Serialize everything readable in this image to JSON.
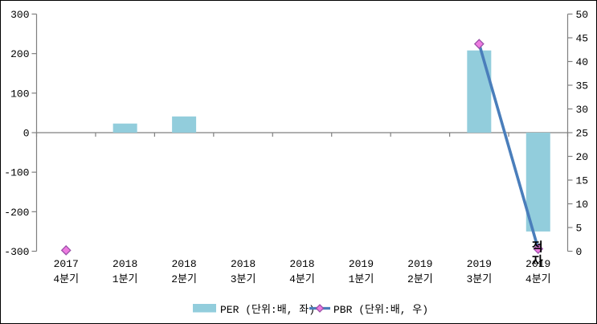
{
  "chart_data": {
    "type": "bar",
    "combo": "bar+line",
    "title": "",
    "categories": [
      [
        "2017",
        "4분기"
      ],
      [
        "2018",
        "1분기"
      ],
      [
        "2018",
        "2분기"
      ],
      [
        "2018",
        "3분기"
      ],
      [
        "2018",
        "4분기"
      ],
      [
        "2019",
        "1분기"
      ],
      [
        "2019",
        "2분기"
      ],
      [
        "2019",
        "3분기"
      ],
      [
        "2019",
        "4분기"
      ]
    ],
    "series": [
      {
        "name": "PER (단위:배, 좌)",
        "type": "bar",
        "axis": "left",
        "color": "#92CDDC",
        "values": [
          null,
          23,
          41,
          null,
          null,
          null,
          null,
          208,
          -250
        ]
      },
      {
        "name": "PBR (단위:배, 우)",
        "type": "line",
        "axis": "right",
        "color": "#4A7EBB",
        "marker": "diamond",
        "marker_fill": "#EE7BE0",
        "marker_stroke": "#9A50A8",
        "values": [
          0.2,
          null,
          null,
          null,
          null,
          null,
          null,
          43.7,
          0.5
        ]
      }
    ],
    "left_axis": {
      "min": -300,
      "max": 300,
      "step": 100,
      "ticks": [
        "300",
        "200",
        "100",
        "0",
        "-100",
        "-200",
        "-300"
      ]
    },
    "right_axis": {
      "min": 0,
      "max": 50,
      "step": 5,
      "ticks": [
        "50",
        "45",
        "40",
        "35",
        "30",
        "25",
        "20",
        "15",
        "10",
        "5",
        "0"
      ]
    },
    "annotations": [
      {
        "text": "적자",
        "category_index": 8,
        "orientation": "vertical-stack"
      }
    ],
    "legend": {
      "position": "bottom-center",
      "entries": [
        {
          "label": "PER (단위:배, 좌)",
          "swatch": "rect"
        },
        {
          "label": "PBR (단위:배, 우)",
          "swatch": "line-diamond"
        }
      ]
    },
    "grid": "zero-line-only",
    "colors": {
      "axis": "#808080",
      "text": "#000000",
      "background": "#FFFFFF",
      "frame_border": "#000000"
    }
  }
}
